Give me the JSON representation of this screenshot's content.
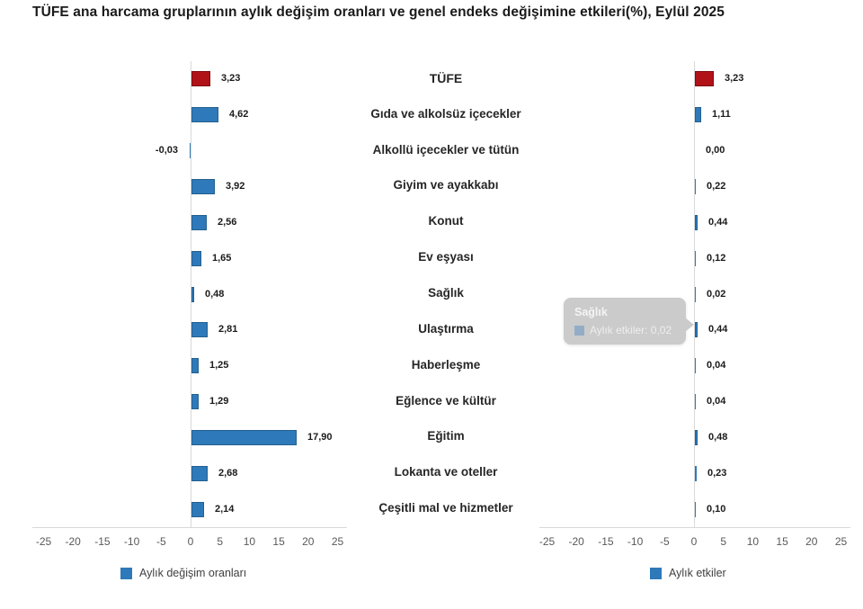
{
  "title": "TÜFE ana harcama gruplarının aylık değişim oranları ve genel endeks değişimine etkileri(%), Eylül 2025",
  "legend": {
    "left": "Aylık değişim oranları",
    "right": "Aylık etkiler"
  },
  "tooltip": {
    "category": "Sağlık",
    "series": "Aylık etkiler",
    "value": "0,02",
    "text": "Aylık etkiler: 0,02"
  },
  "colors": {
    "highlight_bar": "#b11218",
    "highlight_bar_border": "#7e0d11",
    "bar": "#2e79b9",
    "bar_border": "#24618f",
    "axis_line": "#d9d9d9",
    "tick_text": "#595959",
    "value_text": "#1a1a1a",
    "tooltip_bg": "#cbcbcb"
  },
  "chart_data": {
    "type": "bar",
    "orientation": "horizontal",
    "title": "TÜFE ana harcama gruplarının aylık değişim oranları ve genel endeks değişimine etkileri(%), Eylül 2025",
    "categories": [
      "TÜFE",
      "Gıda ve alkolsüz içecekler",
      "Alkollü içecekler ve tütün",
      "Giyim ve ayakkabı",
      "Konut",
      "Ev eşyası",
      "Sağlık",
      "Ulaştırma",
      "Haberleşme",
      "Eğlence ve kültür",
      "Eğitim",
      "Lokanta ve oteller",
      "Çeşitli mal ve hizmetler"
    ],
    "series": [
      {
        "name": "Aylık değişim oranları",
        "values": [
          3.23,
          4.62,
          -0.03,
          3.92,
          2.56,
          1.65,
          0.48,
          2.81,
          1.25,
          1.29,
          17.9,
          2.68,
          2.14
        ],
        "labels": [
          "3,23",
          "4,62",
          "-0,03",
          "3,92",
          "2,56",
          "1,65",
          "0,48",
          "2,81",
          "1,25",
          "1,29",
          "17,90",
          "2,68",
          "2,14"
        ]
      },
      {
        "name": "Aylık etkiler",
        "values": [
          3.23,
          1.11,
          0.0,
          0.22,
          0.44,
          0.12,
          0.02,
          0.44,
          0.04,
          0.04,
          0.48,
          0.23,
          0.1
        ],
        "labels": [
          "3,23",
          "1,11",
          "0,00",
          "0,22",
          "0,44",
          "0,12",
          "0,02",
          "0,44",
          "0,04",
          "0,04",
          "0,48",
          "0,23",
          "0,10"
        ]
      }
    ],
    "xlim": [
      -25,
      25
    ],
    "x_ticks": [
      -25,
      -20,
      -15,
      -10,
      -5,
      0,
      5,
      10,
      15,
      20,
      25
    ],
    "highlight_category": "TÜFE",
    "grid": "zero-line-only",
    "legend_position": "bottom"
  }
}
